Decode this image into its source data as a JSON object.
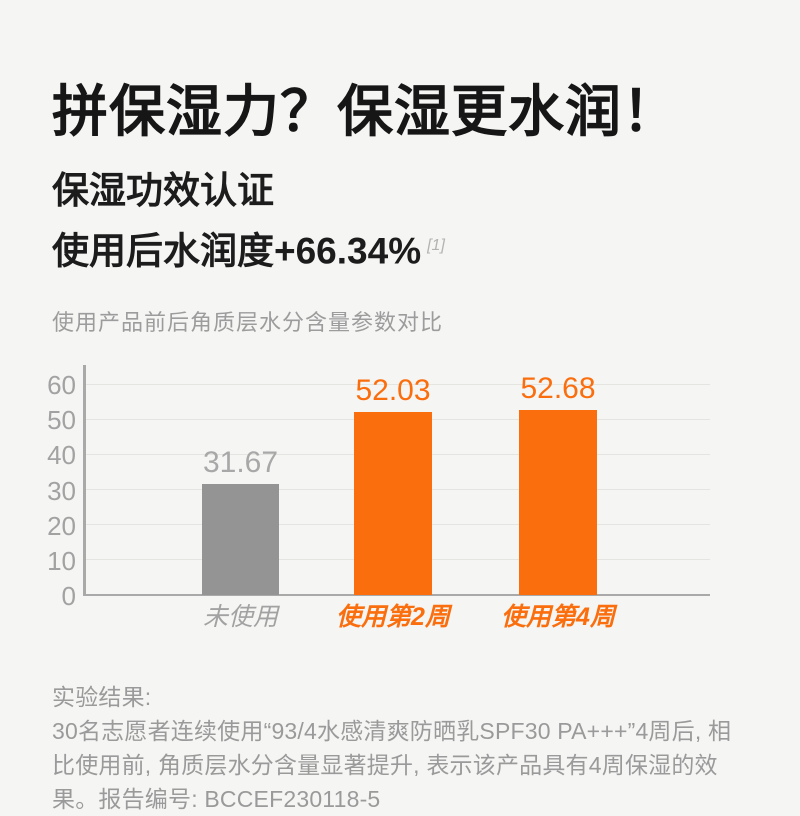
{
  "page": {
    "background_color": "#f5f5f4"
  },
  "header": {
    "title": "拼保湿力？保湿更水润！",
    "subtitle_line1": "保湿功效认证",
    "subtitle_line2": "使用后水润度+66.34%",
    "subtitle_footnote": "[1]"
  },
  "chart_data": {
    "type": "bar",
    "title": "使用产品前后角质层水分含量参数对比",
    "categories": [
      "未使用",
      "使用第2周",
      "使用第4周"
    ],
    "values": [
      31.67,
      52.03,
      52.68
    ],
    "value_labels": [
      "31.67",
      "52.03",
      "52.68"
    ],
    "xlabel": "",
    "ylabel": "",
    "ylim": [
      0,
      60
    ],
    "yticks": [
      0,
      10,
      20,
      30,
      40,
      50,
      60
    ],
    "grid": true,
    "legend": "none",
    "bar_colors": [
      "#949494",
      "#fa6e0e",
      "#fa6e0e"
    ],
    "value_label_colors": [
      "#a8a8a8",
      "#fa6e0e",
      "#fa6e0e"
    ],
    "category_label_colors": [
      "#a2a2a2",
      "#fa6e0e",
      "#fa6e0e"
    ]
  },
  "footer": {
    "line1": "实验结果:",
    "line2": "30名志愿者连续使用“93/4水感清爽防晒乳SPF30 PA+++”4周后, 相比使用前, 角质层水分含量显著提升, 表示该产品具有4周保湿的效果。报告编号: BCCEF230118-5"
  },
  "colors": {
    "accent_orange": "#fa6e0e",
    "bar_gray": "#949494",
    "text_dark": "#161616",
    "text_gray": "#9a9a9a",
    "axis_gray": "#a9a9a9",
    "gridline_gray": "#e4e4e1"
  }
}
